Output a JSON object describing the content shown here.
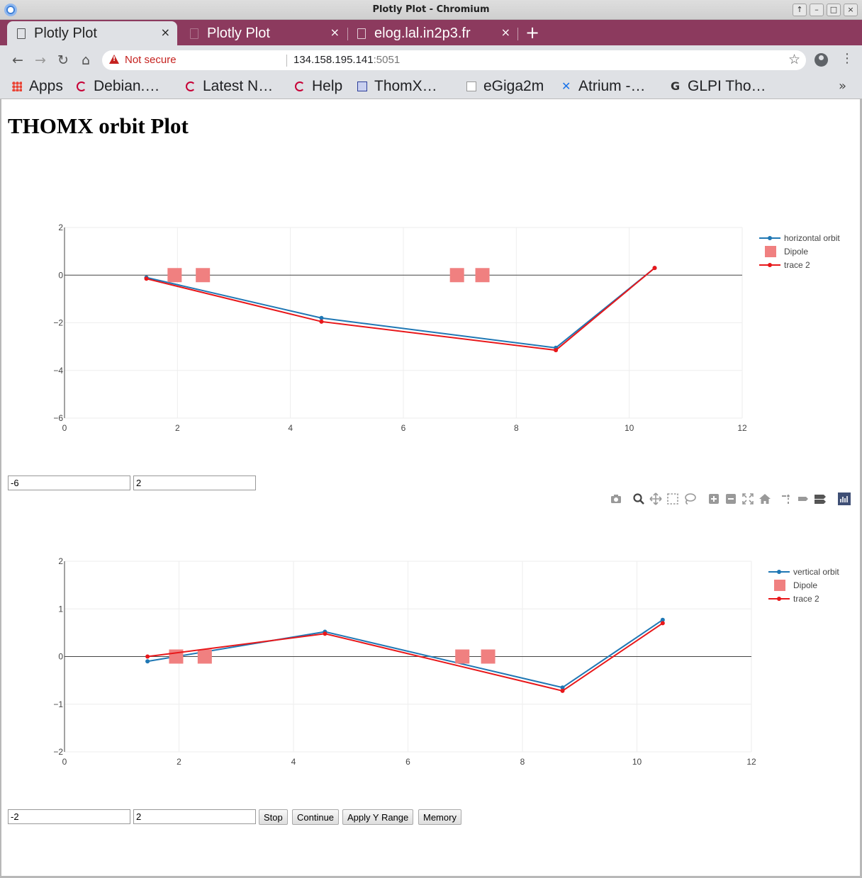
{
  "window": {
    "title": "Plotly Plot - Chromium"
  },
  "tabs": [
    {
      "label": "Plotly Plot",
      "active": true
    },
    {
      "label": "Plotly Plot",
      "active": false
    },
    {
      "label": "elog.lal.in2p3.fr",
      "active": false
    }
  ],
  "address_bar": {
    "security_label": "Not secure",
    "host": "134.158.195.141",
    "port": ":5051"
  },
  "bookmarks": [
    {
      "label": "Apps",
      "icon": "apps-grid-icon"
    },
    {
      "label": "Debian.…",
      "icon": "debian-icon"
    },
    {
      "label": "Latest N…",
      "icon": "debian-icon"
    },
    {
      "label": "Help",
      "icon": "debian-icon"
    },
    {
      "label": "ThomX…",
      "icon": "document-icon"
    },
    {
      "label": "eGiga2m",
      "icon": "egiga-icon"
    },
    {
      "label": "Atrium -…",
      "icon": "atrium-x-icon"
    },
    {
      "label": "GLPI Tho…",
      "icon": "glpi-icon"
    }
  ],
  "page": {
    "heading": "THOMX orbit Plot"
  },
  "colors": {
    "orbit": "#1f77b4",
    "trace2": "#e8171a",
    "dipole": "#f08080",
    "tab_strip": "#8c3a5e"
  },
  "controls": {
    "h_ymin": "-6",
    "h_ymax": "2",
    "v_ymin": "-2",
    "v_ymax": "2",
    "stop_label": "Stop",
    "continue_label": "Continue",
    "apply_label": "Apply Y Range",
    "memory_label": "Memory"
  },
  "modebar_icons": [
    "camera-icon",
    "zoom-icon",
    "pan-icon",
    "box-select-icon",
    "lasso-icon",
    "zoom-in-icon",
    "zoom-out-icon",
    "autoscale-icon",
    "reset-axes-icon",
    "spike-lines-icon",
    "hover-closest-icon",
    "hover-compare-icon",
    "plotly-logo-icon"
  ],
  "chart_data": [
    {
      "type": "line",
      "xlim": [
        0,
        12
      ],
      "ylim": [
        -6,
        2
      ],
      "xticks": [
        "0",
        "2",
        "4",
        "6",
        "8",
        "10",
        "12"
      ],
      "yticks": [
        "2",
        "0",
        "−2",
        "−4",
        "−6"
      ],
      "grid": true,
      "legend_position": "top-right",
      "series": [
        {
          "name": "horizontal orbit",
          "x": [
            1.45,
            4.55,
            8.7,
            10.45
          ],
          "y": [
            -0.1,
            -1.8,
            -3.05,
            0.3
          ]
        },
        {
          "name": "Dipole",
          "x": [
            1.95,
            2.45,
            6.95,
            7.4
          ],
          "y": [
            0,
            0,
            0,
            0
          ]
        },
        {
          "name": "trace 2",
          "x": [
            1.45,
            4.55,
            8.7,
            10.45
          ],
          "y": [
            -0.15,
            -1.95,
            -3.15,
            0.3
          ]
        }
      ]
    },
    {
      "type": "line",
      "xlim": [
        0,
        12
      ],
      "ylim": [
        -2,
        2
      ],
      "xticks": [
        "0",
        "2",
        "4",
        "6",
        "8",
        "10",
        "12"
      ],
      "yticks": [
        "2",
        "1",
        "0",
        "−1",
        "−2"
      ],
      "grid": true,
      "legend_position": "top-right",
      "series": [
        {
          "name": "vertical orbit",
          "x": [
            1.45,
            4.55,
            8.7,
            10.45
          ],
          "y": [
            -0.1,
            0.52,
            -0.65,
            0.77
          ]
        },
        {
          "name": "Dipole",
          "x": [
            1.95,
            2.45,
            6.95,
            7.4
          ],
          "y": [
            0,
            0,
            0,
            0
          ]
        },
        {
          "name": "trace 2",
          "x": [
            1.45,
            4.55,
            8.7,
            10.45
          ],
          "y": [
            0.0,
            0.48,
            -0.72,
            0.7
          ]
        }
      ]
    }
  ]
}
